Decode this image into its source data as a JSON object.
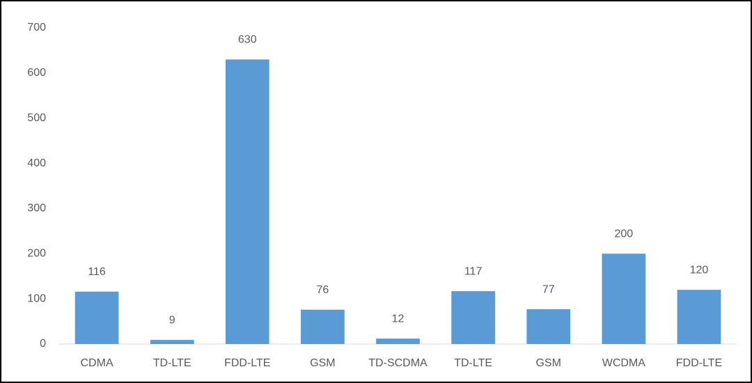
{
  "chart_data": {
    "type": "bar",
    "categories": [
      "CDMA",
      "TD-LTE",
      "FDD-LTE",
      "GSM",
      "TD-SCDMA",
      "TD-LTE",
      "GSM",
      "WCDMA",
      "FDD-LTE"
    ],
    "values": [
      116,
      9,
      630,
      76,
      12,
      117,
      77,
      200,
      120
    ],
    "color": "#5b9bd5",
    "ylim": [
      0,
      700
    ],
    "yticks": [
      0,
      100,
      200,
      300,
      400,
      500,
      600,
      700
    ],
    "grid": false
  }
}
